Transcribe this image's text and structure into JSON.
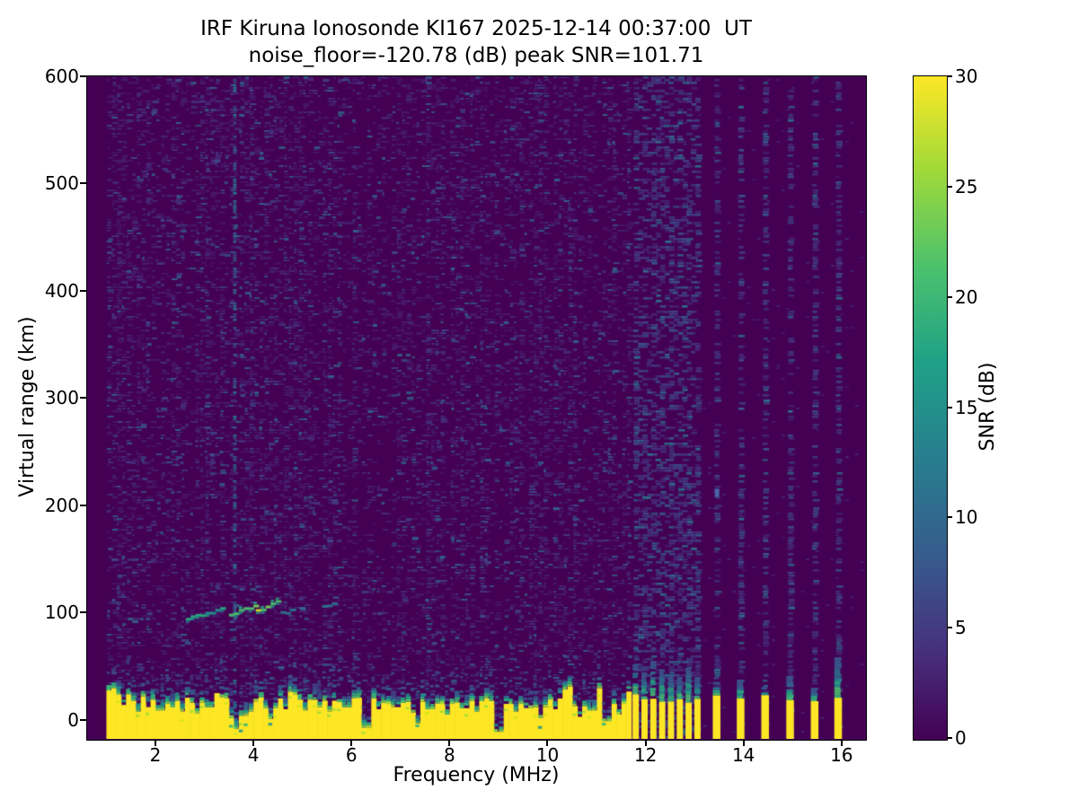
{
  "chart_data": {
    "type": "heatmap",
    "title": "IRF Kiruna Ionosonde KI167 2025-12-14 00:37:00  UT",
    "subtitle": "noise_floor=-120.78 (dB) peak SNR=101.71",
    "station": "IRF Kiruna Ionosonde KI167",
    "timestamp_ut": "2025-12-14 00:37:00",
    "noise_floor_db": -120.78,
    "peak_snr_db": 101.71,
    "xlabel": "Frequency (MHz)",
    "ylabel": "Virtual range (km)",
    "x_ticks": [
      2,
      4,
      6,
      8,
      10,
      12,
      14,
      16
    ],
    "y_ticks": [
      0,
      100,
      200,
      300,
      400,
      500,
      600
    ],
    "xlim": [
      0.607,
      16.48
    ],
    "ylim": [
      -17.6,
      600
    ],
    "grid": false,
    "colormap": "viridis",
    "colorbar": {
      "label": "SNR (dB)",
      "ticks": [
        0,
        5,
        10,
        15,
        20,
        25,
        30
      ],
      "min": 0,
      "max": 30
    },
    "features": {
      "background_snr_db": 0,
      "ground_clutter": {
        "f_start": 1.0,
        "f_end": 11.67,
        "top_km_typical": 24,
        "top_km_jitter": 9,
        "snr_db": 30
      },
      "clutter_notches": [
        {
          "f": 1.35,
          "km": 14
        },
        {
          "f": 1.62,
          "km": 8
        },
        {
          "f": 1.88,
          "km": 12
        },
        {
          "f": 2.1,
          "km": 9
        },
        {
          "f": 2.35,
          "km": 12
        },
        {
          "f": 2.52,
          "km": 8
        },
        {
          "f": 2.83,
          "km": 6
        },
        {
          "f": 3.1,
          "km": 12
        },
        {
          "f": 3.62,
          "km": -8
        },
        {
          "f": 3.8,
          "km": 4
        },
        {
          "f": 3.95,
          "km": 8
        },
        {
          "f": 4.37,
          "km": 1
        },
        {
          "f": 4.62,
          "km": 10
        },
        {
          "f": 5.05,
          "km": 9
        },
        {
          "f": 5.32,
          "km": 12
        },
        {
          "f": 5.55,
          "km": 8
        },
        {
          "f": 5.9,
          "km": 12
        },
        {
          "f": 6.3,
          "km": -7
        },
        {
          "f": 6.55,
          "km": 10
        },
        {
          "f": 6.9,
          "km": 12
        },
        {
          "f": 7.32,
          "km": -3
        },
        {
          "f": 7.6,
          "km": 10
        },
        {
          "f": 7.97,
          "km": 5
        },
        {
          "f": 8.3,
          "km": 11
        },
        {
          "f": 8.55,
          "km": 8
        },
        {
          "f": 9.0,
          "km": -11
        },
        {
          "f": 9.35,
          "km": 8
        },
        {
          "f": 9.6,
          "km": 11
        },
        {
          "f": 9.88,
          "km": 2
        },
        {
          "f": 10.15,
          "km": 10
        },
        {
          "f": 10.63,
          "km": 3
        },
        {
          "f": 10.9,
          "km": 9
        },
        {
          "f": 11.2,
          "km": -1
        },
        {
          "f": 11.45,
          "km": 5
        }
      ],
      "echo_traces": [
        {
          "f1": 2.62,
          "f2": 3.28,
          "km_low": 96,
          "km_high": 104,
          "intensity_db": 15
        },
        {
          "f1": 3.5,
          "f2": 4.02,
          "km_low": 99,
          "km_high": 107,
          "intensity_db": 22
        },
        {
          "f1": 4.05,
          "f2": 4.5,
          "km_low": 103,
          "km_high": 112,
          "intensity_db": 26
        },
        {
          "f1": 4.55,
          "f2": 5.0,
          "km_low": 100,
          "km_high": 106,
          "intensity_db": 9
        },
        {
          "f1": 5.1,
          "f2": 5.58,
          "km_low": 103,
          "km_high": 110,
          "intensity_db": 9
        }
      ],
      "interference_column": {
        "f": 3.62
      },
      "rfi_bars": [
        {
          "f": 11.8,
          "cap_km": 52
        },
        {
          "f": 11.98,
          "cap_km": 44
        },
        {
          "f": 12.16,
          "cap_km": 56
        },
        {
          "f": 12.34,
          "cap_km": 48
        },
        {
          "f": 12.52,
          "cap_km": 42
        },
        {
          "f": 12.7,
          "cap_km": 38
        },
        {
          "f": 12.88,
          "cap_km": 50
        },
        {
          "f": 13.06,
          "cap_km": 40
        },
        {
          "f": 13.45,
          "cap_km": 34
        },
        {
          "f": 13.94,
          "cap_km": 36
        },
        {
          "f": 14.44,
          "cap_km": 30
        },
        {
          "f": 14.95,
          "cap_km": 40
        },
        {
          "f": 15.45,
          "cap_km": 28
        },
        {
          "f": 15.93,
          "cap_km": 58
        }
      ],
      "isolated_echo": {
        "f": 13.45,
        "km": 212
      }
    }
  },
  "colors": {
    "background": "#ffffff",
    "cmap_min": "#440154",
    "cmap_max": "#fde725",
    "axis": "#000000"
  }
}
